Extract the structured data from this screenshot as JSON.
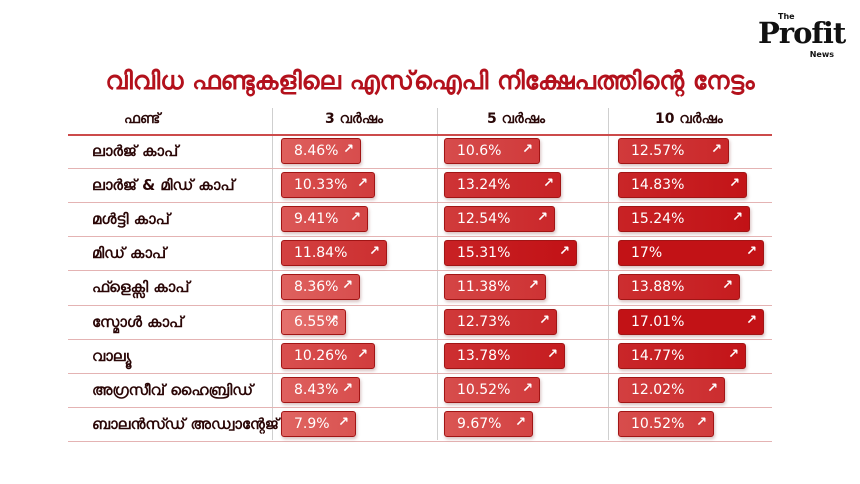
{
  "brand": {
    "the": "The",
    "profit": "Profit",
    "news": "News"
  },
  "chart_data": {
    "type": "bar",
    "title": "വിവിധ ഫണ്ടുകളിലെ എസ്ഐപി നിക്ഷേപത്തിന്റെ നേട്ടം",
    "category_header": "ഫണ്ട്",
    "categories": [
      "ലാർജ് കാപ്",
      "ലാർജ് & മിഡ് കാപ്",
      "മൾട്ടി കാപ്",
      "മിഡ് കാപ്",
      "ഫ്ളെക്സി കാപ്",
      "സ്മോൾ കാപ്",
      "വാല്യൂ",
      "അഗ്രസീവ് ഹൈബ്രിഡ്",
      "ബാലൻസ്ഡ് അഡ്വാന്റേജ്"
    ],
    "series": [
      {
        "name": "3 വർഷം",
        "values": [
          8.46,
          10.33,
          9.41,
          11.84,
          8.36,
          6.55,
          10.26,
          8.43,
          7.9
        ],
        "labels": [
          "8.46%",
          "10.33%",
          "9.41%",
          "11.84%",
          "8.36%",
          "6.55%",
          "10.26%",
          "8.43%",
          "7.9%"
        ]
      },
      {
        "name": "5 വർഷം",
        "values": [
          10.6,
          13.24,
          12.54,
          15.31,
          11.38,
          12.73,
          13.78,
          10.52,
          9.67
        ],
        "labels": [
          "10.6%",
          "13.24%",
          "12.54%",
          "15.31%",
          "11.38%",
          "12.73%",
          "13.78%",
          "10.52%",
          "9.67%"
        ]
      },
      {
        "name": "10 വർഷം",
        "values": [
          12.57,
          14.83,
          15.24,
          17,
          13.88,
          17.01,
          14.77,
          12.02,
          10.52
        ],
        "labels": [
          "12.57%",
          "14.83%",
          "15.24%",
          "17%",
          "13.88%",
          "17.01%",
          "14.77%",
          "12.02%",
          "10.52%"
        ]
      }
    ],
    "colors": {
      "light": "#e36a66",
      "dark": "#c4171b",
      "text": "#ffffff",
      "title": "#b3111c"
    },
    "marker": "↗"
  }
}
